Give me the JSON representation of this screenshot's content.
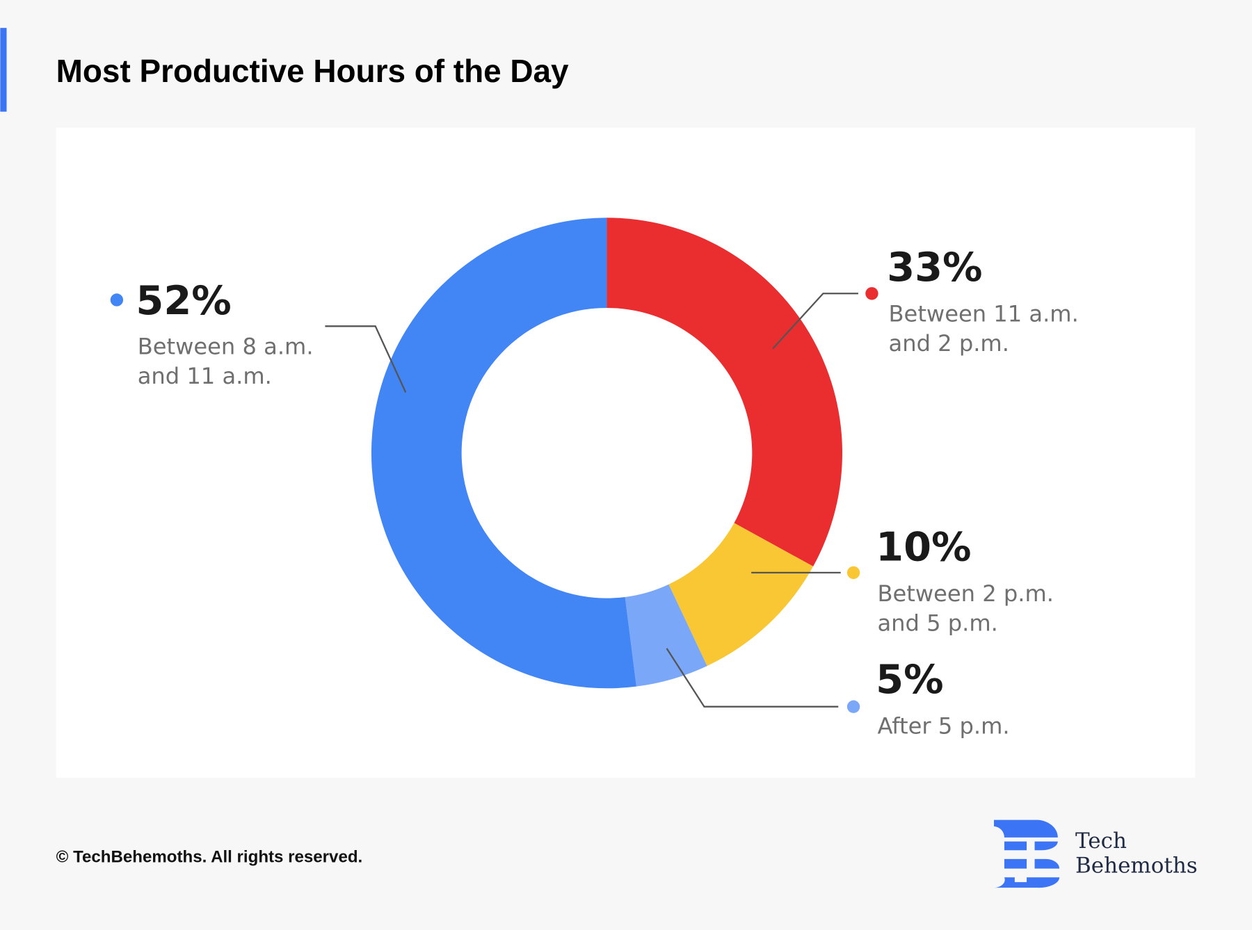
{
  "header": {
    "title": "Most Productive Hours of the Day",
    "accent_color": "#3b74f5"
  },
  "chart_data": {
    "type": "pie",
    "style": "donut",
    "title": "Most Productive Hours of the Day",
    "start": "top, clockwise",
    "slices": [
      {
        "value": 33,
        "label": "33%",
        "desc": [
          "Between 11 a.m.",
          "and 2 p.m."
        ],
        "color": "#ea2d2e"
      },
      {
        "value": 10,
        "label": "10%",
        "desc": [
          "Between 2 p.m.",
          "and 5 p.m."
        ],
        "color": "#f9c733"
      },
      {
        "value": 5,
        "label": "5%",
        "desc": [
          "After 5 p.m."
        ],
        "color": "#7aa7f7"
      },
      {
        "value": 52,
        "label": "52%",
        "desc": [
          "Between 8 a.m.",
          "and 11 a.m."
        ],
        "color": "#4285f4"
      }
    ]
  },
  "footer": {
    "copyright": "© TechBehemoths. All rights reserved.",
    "logo": {
      "line1": "Tech",
      "line2": "Behemoths",
      "color": "#3b74f5"
    }
  }
}
